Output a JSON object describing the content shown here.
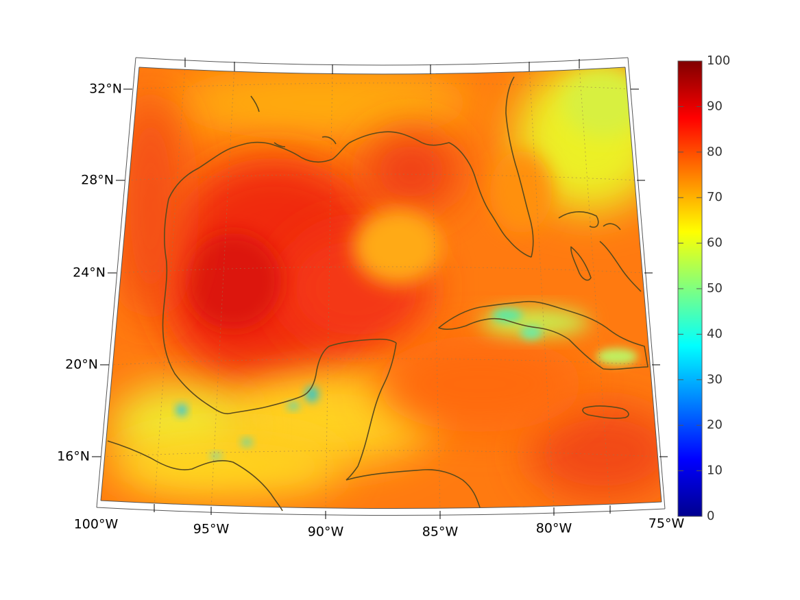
{
  "map": {
    "projection": "lambert-conic",
    "lat_labels": [
      "32°N",
      "28°N",
      "24°N",
      "20°N",
      "16°N"
    ],
    "lon_labels": [
      "100°W",
      "95°W",
      "90°W",
      "85°W",
      "80°W",
      "75°W"
    ],
    "coastline_color": "#5a4a1c",
    "grid": "dotted"
  },
  "colorbar": {
    "colormap": "jet",
    "ticks": [
      "100",
      "90",
      "80",
      "70",
      "60",
      "50",
      "40",
      "30",
      "20",
      "10",
      "0"
    ],
    "range": [
      0,
      100
    ]
  }
}
